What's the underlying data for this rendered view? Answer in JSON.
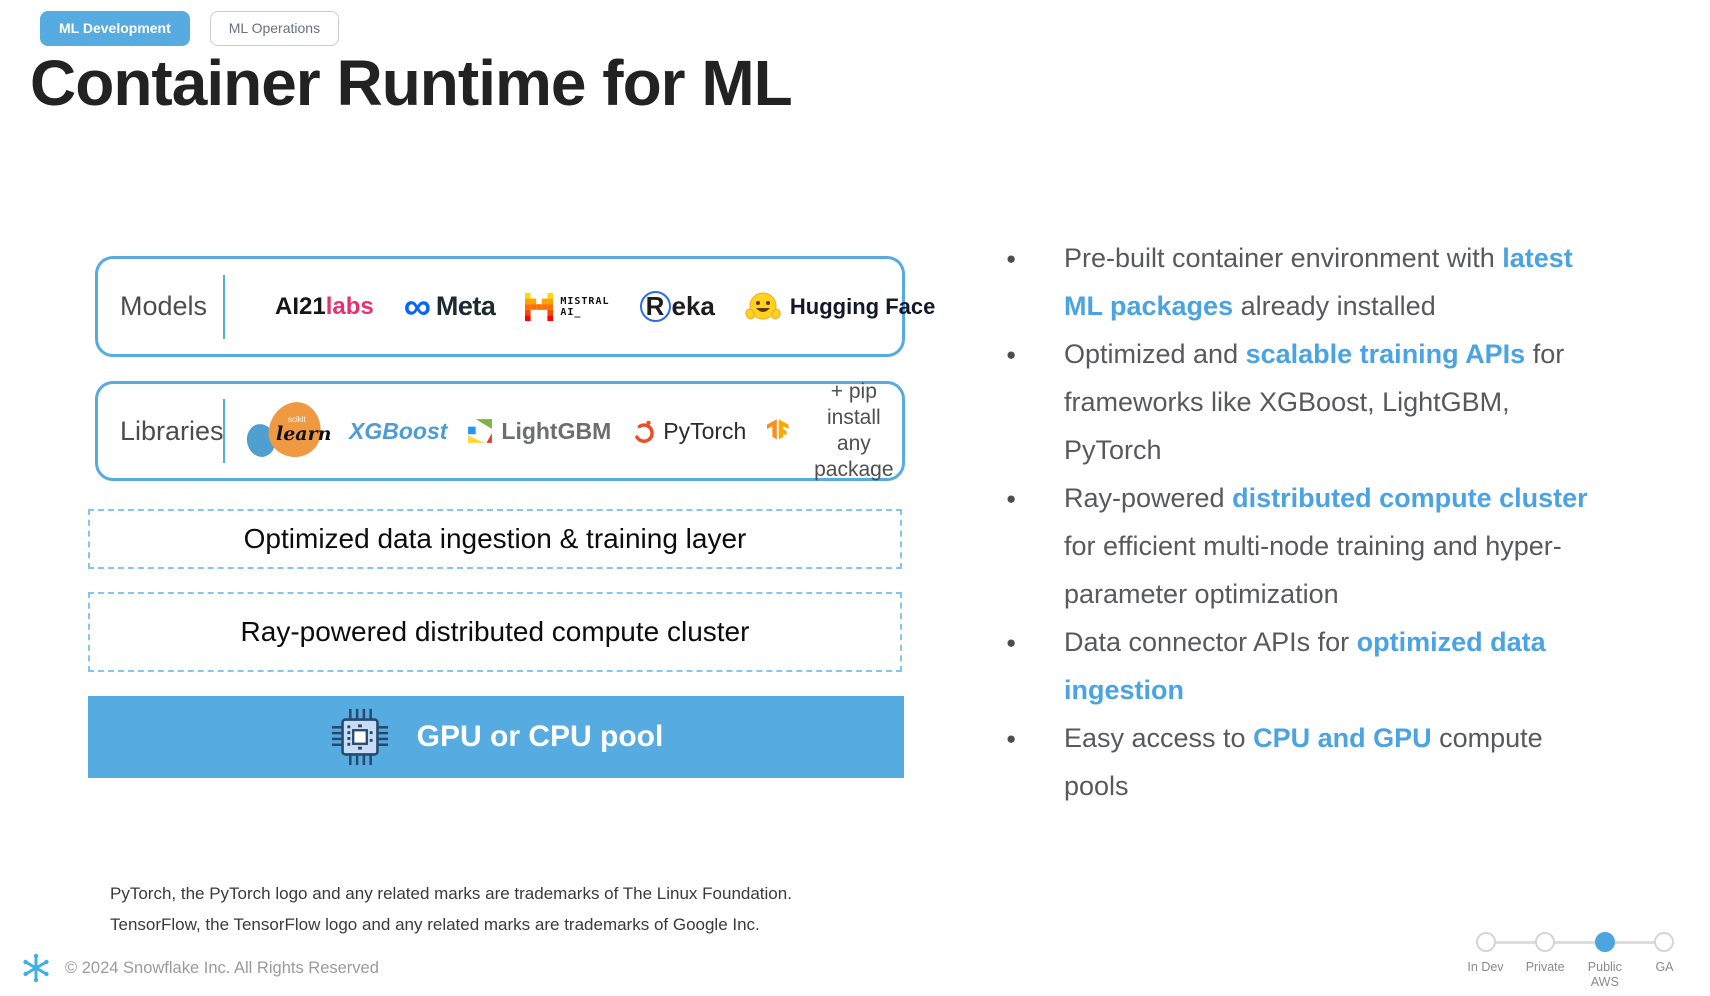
{
  "tabs": [
    {
      "label": "ML Development",
      "active": true
    },
    {
      "label": "ML Operations",
      "active": false
    }
  ],
  "title": "Container Runtime for ML",
  "diagram": {
    "models": {
      "label": "Models",
      "logos": {
        "ai21_prefix": "AI21",
        "ai21_suffix": "labs",
        "meta_symbol": "∞",
        "meta": "Meta",
        "mistral_line1": "MISTRAL",
        "mistral_line2": "AI_",
        "reka_r": "R",
        "reka_rest": "eka",
        "huggingface": "Hugging Face"
      }
    },
    "libraries": {
      "label": "Libraries",
      "logos": {
        "sklearn_top": "scikit",
        "sklearn_script": "learn",
        "xgboost": "XGBoost",
        "lightgbm": "LightGBM",
        "pytorch": "PyTorch",
        "pip_line1": "+ pip install",
        "pip_line2": "any package"
      }
    },
    "layer1": "Optimized data ingestion & training layer",
    "layer2": "Ray-powered distributed compute cluster",
    "compute_pool": "GPU or CPU pool"
  },
  "bullets": [
    {
      "segments": [
        {
          "t": "Pre-built container environment with "
        },
        {
          "t": "latest ML packages",
          "h": true
        },
        {
          "t": " already installed"
        }
      ]
    },
    {
      "segments": [
        {
          "t": "Optimized and "
        },
        {
          "t": "scalable training APIs",
          "h": true
        },
        {
          "t": " for frameworks like XGBoost, LightGBM, PyTorch"
        }
      ]
    },
    {
      "segments": [
        {
          "t": "Ray-powered "
        },
        {
          "t": "distributed compute cluster",
          "h": true
        },
        {
          "t": " for efficient multi-node training and hyper-parameter optimization"
        }
      ]
    },
    {
      "segments": [
        {
          "t": "Data connector APIs for "
        },
        {
          "t": "optimized data ingestion",
          "h": true
        }
      ]
    },
    {
      "segments": [
        {
          "t": "Easy access to "
        },
        {
          "t": "CPU and GPU",
          "h": true
        },
        {
          "t": " compute pools"
        }
      ]
    }
  ],
  "footnotes": [
    "PyTorch, the PyTorch logo and any related marks are trademarks of The Linux Foundation.",
    "TensorFlow, the TensorFlow logo and any related marks are trademarks of Google Inc."
  ],
  "footer": {
    "copyright": "© 2024 Snowflake Inc. All Rights Reserved"
  },
  "stepper": {
    "steps": [
      {
        "lines": [
          "In Dev"
        ],
        "active": false
      },
      {
        "lines": [
          "Private"
        ],
        "active": false
      },
      {
        "lines": [
          "Public",
          "AWS"
        ],
        "active": true
      },
      {
        "lines": [
          "GA"
        ],
        "active": false
      }
    ]
  },
  "colors": {
    "accent": "#56ACE0",
    "highlight": "#4AA3E2",
    "bullet_text": "#58595B",
    "dashed_border": "#85C6EC"
  }
}
